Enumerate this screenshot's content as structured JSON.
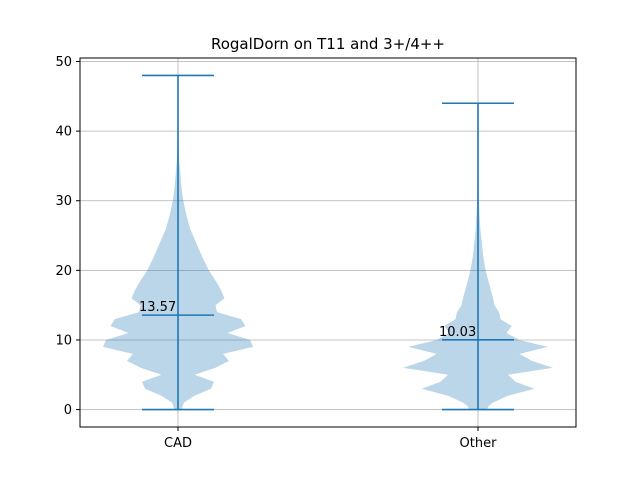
{
  "chart_data": {
    "type": "violin",
    "title": "RogalDorn on T11 and 3+/4++",
    "xlabel": "",
    "ylabel": "",
    "categories": [
      "CAD",
      "Other"
    ],
    "ylim": [
      -2.5,
      50.5
    ],
    "y_ticks": [
      0,
      10,
      20,
      30,
      40,
      50
    ],
    "grid": true,
    "colors": {
      "violin_fill": "#1f77b4",
      "violin_fill_opacity": 0.3,
      "lines": "#1f77b4",
      "grid": "#b0b0b0"
    },
    "series": [
      {
        "category": "CAD",
        "min": 0,
        "max": 48,
        "mean": 13.57,
        "mean_label": "13.57",
        "density": [
          [
            0,
            0.05
          ],
          [
            0.5,
            0.06
          ],
          [
            1,
            0.08
          ],
          [
            2,
            0.22
          ],
          [
            3,
            0.44
          ],
          [
            4,
            0.48
          ],
          [
            5,
            0.22
          ],
          [
            6,
            0.5
          ],
          [
            7,
            0.68
          ],
          [
            8,
            0.6
          ],
          [
            9,
            1.0
          ],
          [
            10,
            0.96
          ],
          [
            11,
            0.66
          ],
          [
            12,
            0.9
          ],
          [
            13,
            0.84
          ],
          [
            14,
            0.52
          ],
          [
            15,
            0.5
          ],
          [
            16,
            0.62
          ],
          [
            17,
            0.58
          ],
          [
            18,
            0.53
          ],
          [
            19,
            0.47
          ],
          [
            20,
            0.41
          ],
          [
            22,
            0.32
          ],
          [
            24,
            0.24
          ],
          [
            26,
            0.16
          ],
          [
            28,
            0.11
          ],
          [
            30,
            0.07
          ],
          [
            32,
            0.045
          ],
          [
            34,
            0.03
          ],
          [
            36,
            0.015
          ],
          [
            40,
            0.004
          ],
          [
            44,
            0.001
          ],
          [
            48,
            0.0
          ]
        ]
      },
      {
        "category": "Other",
        "min": 0,
        "max": 44,
        "mean": 10.03,
        "mean_label": "10.03",
        "density": [
          [
            0,
            0.12
          ],
          [
            0.5,
            0.14
          ],
          [
            1,
            0.2
          ],
          [
            2,
            0.4
          ],
          [
            3,
            0.75
          ],
          [
            4,
            0.5
          ],
          [
            5,
            0.4
          ],
          [
            6,
            1.0
          ],
          [
            7,
            0.72
          ],
          [
            8,
            0.55
          ],
          [
            9,
            0.93
          ],
          [
            10,
            0.55
          ],
          [
            11,
            0.38
          ],
          [
            12,
            0.45
          ],
          [
            13,
            0.3
          ],
          [
            14,
            0.28
          ],
          [
            15,
            0.22
          ],
          [
            16,
            0.2
          ],
          [
            18,
            0.15
          ],
          [
            20,
            0.1
          ],
          [
            22,
            0.07
          ],
          [
            24,
            0.05
          ],
          [
            26,
            0.03
          ],
          [
            28,
            0.02
          ],
          [
            30,
            0.012
          ],
          [
            34,
            0.005
          ],
          [
            38,
            0.002
          ],
          [
            44,
            0.0
          ]
        ]
      }
    ]
  }
}
